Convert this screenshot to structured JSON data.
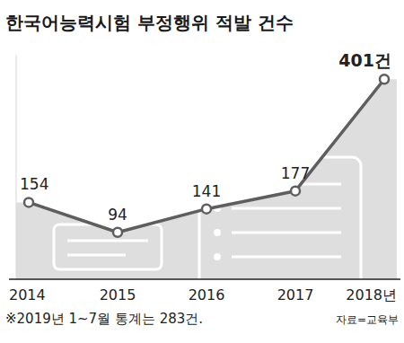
{
  "chart_data": {
    "type": "line",
    "title": "한국어능력시험 부정행위 적발 건수",
    "categories": [
      "2014",
      "2015",
      "2016",
      "2017",
      "2018년"
    ],
    "values": [
      154,
      94,
      141,
      177,
      401
    ],
    "value_labels": [
      "154",
      "94",
      "141",
      "177",
      "401건"
    ],
    "color": "#5e5e5e",
    "marker": "circle",
    "ylim": [
      0,
      450
    ],
    "tick_labels": "x",
    "grid": false,
    "data_labels": true,
    "note": "※2019년 1~7월 통계는 283건.",
    "source": "자료=교육부"
  }
}
